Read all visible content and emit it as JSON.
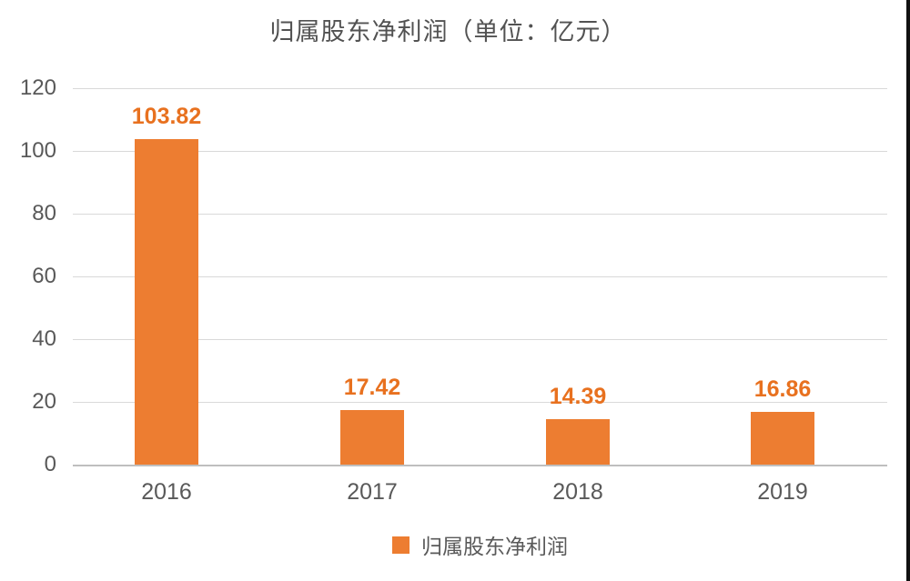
{
  "chart_data": {
    "type": "bar",
    "title": "归属股东净利润（单位：亿元）",
    "categories": [
      "2016",
      "2017",
      "2018",
      "2019"
    ],
    "series": [
      {
        "name": "归属股东净利润",
        "values": [
          103.82,
          17.42,
          14.39,
          16.86
        ]
      }
    ],
    "value_labels": [
      "103.82",
      "17.42",
      "14.39",
      "16.86"
    ],
    "yticks": [
      "120",
      "100",
      "80",
      "60",
      "40",
      "20",
      "0"
    ],
    "ylim": [
      0,
      120
    ],
    "xlabel": "",
    "ylabel": "",
    "grid": true,
    "legend_position": "bottom",
    "legend": {
      "swatch": "orange-square",
      "label": "归属股东净利润"
    },
    "colors": {
      "bar": "#ED7D31",
      "value_label": "#E8711F",
      "axis_text": "#595959",
      "gridline": "#D9D9D9",
      "axis_line": "#BFBFBF",
      "title": "#525252",
      "background": "#FFFFFF",
      "right_edge_strip": "#111111"
    }
  }
}
